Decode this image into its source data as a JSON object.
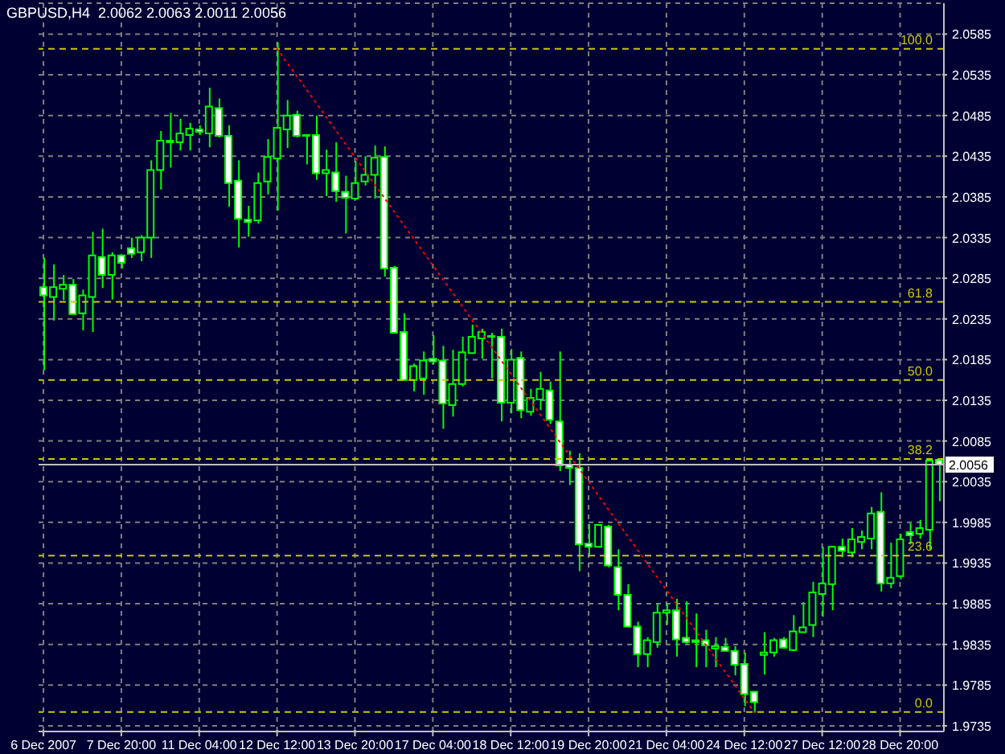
{
  "chart_data": {
    "type": "candlestick",
    "title": "GBPUSD,H4  2.0062 2.0063 2.0011 2.0056",
    "color": "#00ff00",
    "categories": [
      "6 Dec 2007",
      null,
      null,
      null,
      null,
      null,
      null,
      null,
      "7 Dec 20:00",
      null,
      null,
      null,
      null,
      null,
      null,
      null,
      "11 Dec 04:00",
      null,
      null,
      null,
      null,
      null,
      null,
      null,
      "12 Dec 12:00",
      null,
      null,
      null,
      null,
      null,
      null,
      null,
      "13 Dec 20:00",
      null,
      null,
      null,
      null,
      null,
      null,
      null,
      "17 Dec 04:00",
      null,
      null,
      null,
      null,
      null,
      null,
      null,
      "18 Dec 12:00",
      null,
      null,
      null,
      null,
      null,
      null,
      null,
      "19 Dec 20:00",
      null,
      null,
      null,
      null,
      null,
      null,
      null,
      "21 Dec 04:00",
      null,
      null,
      null,
      null,
      null,
      null,
      null,
      "24 Dec 12:00",
      null,
      null,
      null,
      null,
      null,
      null,
      null,
      "27 Dec 12:00",
      null,
      null,
      null,
      null,
      null,
      null,
      null,
      "28 Dec 20:00",
      null,
      null,
      null,
      null
    ],
    "ohlc": [
      [
        2.0274,
        2.031,
        2.0172,
        2.0264
      ],
      [
        2.0262,
        2.0302,
        2.0233,
        2.0274
      ],
      [
        2.0272,
        2.0289,
        2.0258,
        2.0277
      ],
      [
        2.0277,
        2.0284,
        2.0241,
        2.0241
      ],
      [
        2.0242,
        2.0271,
        2.0221,
        2.0264
      ],
      [
        2.0262,
        2.0342,
        2.0219,
        2.0313
      ],
      [
        2.0311,
        2.0346,
        2.0273,
        2.0289
      ],
      [
        2.0289,
        2.0317,
        2.0259,
        2.0313
      ],
      [
        2.0313,
        2.0314,
        2.0297,
        2.0304
      ],
      [
        2.0322,
        2.0335,
        2.031,
        2.0315
      ],
      [
        2.0317,
        2.0338,
        2.0306,
        2.0335
      ],
      [
        2.0335,
        2.043,
        2.031,
        2.0418
      ],
      [
        2.0418,
        2.0466,
        2.0394,
        2.0454
      ],
      [
        2.0454,
        2.0488,
        2.0421,
        2.0452
      ],
      [
        2.0452,
        2.0481,
        2.0442,
        2.0463
      ],
      [
        2.0461,
        2.0476,
        2.0442,
        2.0469
      ],
      [
        2.0468,
        2.0473,
        2.0461,
        2.0465
      ],
      [
        2.0463,
        2.0519,
        2.0446,
        2.0496
      ],
      [
        2.0494,
        2.0506,
        2.0458,
        2.046
      ],
      [
        2.046,
        2.0473,
        2.0373,
        2.0402
      ],
      [
        2.0405,
        2.043,
        2.0323,
        2.0358
      ],
      [
        2.0357,
        2.0374,
        2.0336,
        2.0354
      ],
      [
        2.0356,
        2.0415,
        2.0352,
        2.0402
      ],
      [
        2.0404,
        2.0456,
        2.0388,
        2.0434
      ],
      [
        2.0432,
        2.0575,
        2.0368,
        2.047
      ],
      [
        2.0468,
        2.0504,
        2.0445,
        2.0485
      ],
      [
        2.0486,
        2.0491,
        2.0458,
        2.046
      ],
      [
        2.0461,
        2.0461,
        2.0425,
        2.046
      ],
      [
        2.0461,
        2.0485,
        2.0406,
        2.0414
      ],
      [
        2.0414,
        2.0443,
        2.0386,
        2.0418
      ],
      [
        2.0415,
        2.0452,
        2.0379,
        2.0392
      ],
      [
        2.0391,
        2.0411,
        2.034,
        2.0384
      ],
      [
        2.0383,
        2.0429,
        2.0381,
        2.0402
      ],
      [
        2.0404,
        2.0435,
        2.0399,
        2.0412
      ],
      [
        2.0412,
        2.0448,
        2.0383,
        2.0433
      ],
      [
        2.0434,
        2.0447,
        2.0287,
        2.0297
      ],
      [
        2.0298,
        2.03,
        2.0217,
        2.0218
      ],
      [
        2.0219,
        2.0242,
        2.0159,
        2.016
      ],
      [
        2.016,
        2.018,
        2.0146,
        2.0177
      ],
      [
        2.0162,
        2.0195,
        2.0142,
        2.0184
      ],
      [
        2.0186,
        2.0215,
        2.0179,
        2.0183
      ],
      [
        2.0184,
        2.0202,
        2.01,
        2.0131
      ],
      [
        2.0129,
        2.0197,
        2.0115,
        2.0155
      ],
      [
        2.0155,
        2.0213,
        2.0152,
        2.0194
      ],
      [
        2.0193,
        2.0228,
        2.0192,
        2.0213
      ],
      [
        2.0211,
        2.0223,
        2.0186,
        2.0219
      ],
      [
        2.0213,
        2.0218,
        2.0162,
        2.0214
      ],
      [
        2.0213,
        2.0223,
        2.0109,
        2.0132
      ],
      [
        2.0132,
        2.0198,
        2.0119,
        2.0185
      ],
      [
        2.0187,
        2.0195,
        2.0113,
        2.0123
      ],
      [
        2.0121,
        2.0149,
        2.0116,
        2.0138
      ],
      [
        2.0136,
        2.017,
        2.0123,
        2.0149
      ],
      [
        2.0147,
        2.0158,
        2.0106,
        2.0111
      ],
      [
        2.0109,
        2.0195,
        2.0048,
        2.0055
      ],
      [
        2.0056,
        2.0073,
        2.0031,
        2.0052
      ],
      [
        2.0052,
        2.007,
        1.9925,
        1.9958
      ],
      [
        1.9959,
        1.9983,
        1.9945,
        1.9955
      ],
      [
        1.9955,
        1.9982,
        1.9954,
        1.9982
      ],
      [
        1.998,
        1.9982,
        1.993,
        1.9932
      ],
      [
        1.993,
        1.9952,
        1.9877,
        1.9896
      ],
      [
        1.9896,
        1.9909,
        1.9856,
        1.9857
      ],
      [
        1.9857,
        1.9863,
        1.9807,
        1.9823
      ],
      [
        1.9823,
        1.9844,
        1.9807,
        1.984
      ],
      [
        1.9838,
        1.9886,
        1.9831,
        1.9874
      ],
      [
        1.9874,
        1.9886,
        1.9859,
        1.9877
      ],
      [
        1.9877,
        1.9891,
        1.982,
        1.9841
      ],
      [
        1.9843,
        1.9888,
        1.9836,
        1.9838
      ],
      [
        1.984,
        1.9873,
        1.9807,
        1.9838
      ],
      [
        1.984,
        1.9853,
        1.9807,
        1.9834
      ],
      [
        1.983,
        1.9844,
        1.9807,
        1.9833
      ],
      [
        1.9832,
        1.9843,
        1.9827,
        1.9827
      ],
      [
        1.9827,
        1.9833,
        1.9797,
        1.981
      ],
      [
        1.9811,
        1.9825,
        1.9759,
        1.9774
      ],
      [
        1.9777,
        1.9777,
        1.9751,
        1.9764
      ],
      [
        1.9822,
        1.985,
        1.9798,
        1.9825
      ],
      [
        1.9825,
        1.9843,
        1.982,
        1.984
      ],
      [
        1.9841,
        1.9844,
        1.983,
        1.9831
      ],
      [
        1.9828,
        1.9871,
        1.9827,
        1.9851
      ],
      [
        1.985,
        1.9887,
        1.985,
        1.9856
      ],
      [
        1.9859,
        1.9912,
        1.9844,
        1.9899
      ],
      [
        1.9897,
        1.9955,
        1.9869,
        1.991
      ],
      [
        1.9909,
        1.9956,
        1.9877,
        1.9955
      ],
      [
        1.9955,
        1.9965,
        1.9942,
        1.995
      ],
      [
        1.9948,
        1.9978,
        1.9942,
        1.9964
      ],
      [
        1.9961,
        1.9975,
        1.9952,
        1.9967
      ],
      [
        1.9965,
        2.0004,
        1.9952,
        1.9996
      ],
      [
        1.9998,
        2.0022,
        1.99,
        1.991
      ],
      [
        1.991,
        1.996,
        1.9904,
        1.9917
      ],
      [
        1.9919,
        1.9971,
        1.9915,
        1.9964
      ],
      [
        1.9973,
        1.9984,
        1.9958,
        1.9969
      ],
      [
        1.9971,
        1.9988,
        1.9965,
        1.9978
      ],
      [
        1.9976,
        2.0063,
        1.9952,
        2.0061
      ],
      [
        2.0062,
        2.0063,
        2.0011,
        2.0056
      ]
    ],
    "series": [
      {
        "type": "line",
        "color": "#ff0000",
        "line_style": "dotted",
        "values": [
          null,
          null,
          null,
          null,
          null,
          null,
          null,
          null,
          null,
          null,
          null,
          null,
          null,
          null,
          null,
          null,
          null,
          null,
          null,
          null,
          null,
          null,
          null,
          null,
          2.0567,
          null,
          null,
          null,
          null,
          null,
          null,
          null,
          null,
          null,
          null,
          null,
          null,
          null,
          null,
          null,
          null,
          null,
          null,
          null,
          null,
          null,
          null,
          null,
          null,
          null,
          null,
          null,
          null,
          null,
          null,
          null,
          null,
          null,
          null,
          null,
          null,
          null,
          null,
          null,
          null,
          null,
          null,
          null,
          null,
          null,
          null,
          null,
          null,
          1.9752,
          null,
          null,
          null,
          null,
          null,
          null,
          null,
          null,
          null,
          null,
          null,
          null,
          null,
          null,
          null,
          null,
          null,
          null,
          null
        ]
      }
    ],
    "ylim": [
      1.9728,
      2.0623
    ],
    "yticks": [
      1.9735,
      1.9785,
      1.9835,
      1.9885,
      1.9935,
      1.9985,
      2.0035,
      2.0085,
      2.0135,
      2.0185,
      2.0235,
      2.0285,
      2.0335,
      2.0385,
      2.0435,
      2.0485,
      2.0535,
      2.0585
    ],
    "grid": true,
    "annotations": [
      {
        "text": "100.0",
        "y": 2.0567
      },
      {
        "text": "61.8",
        "y": 2.0256
      },
      {
        "text": "50.0",
        "y": 2.016
      },
      {
        "text": "38.2",
        "y": 2.0063
      },
      {
        "text": "23.6",
        "y": 1.9944
      },
      {
        "text": "0.0",
        "y": 1.9752
      }
    ],
    "ref_lines": [
      {
        "axis": "y",
        "value": 2.0567,
        "color": "#c8c800",
        "line_style": "dashed"
      },
      {
        "axis": "y",
        "value": 2.0256,
        "color": "#c8c800",
        "line_style": "dashed"
      },
      {
        "axis": "y",
        "value": 2.016,
        "color": "#c8c800",
        "line_style": "dashed"
      },
      {
        "axis": "y",
        "value": 2.0063,
        "color": "#c8c800",
        "line_style": "dashed"
      },
      {
        "axis": "y",
        "value": 1.9944,
        "color": "#c8c800",
        "line_style": "dashed"
      },
      {
        "axis": "y",
        "value": 1.9752,
        "color": "#c8c800",
        "line_style": "dashed"
      },
      {
        "axis": "y",
        "value": 2.0056,
        "label": "2.0056",
        "color": "#c0c0c0",
        "line_style": "solid"
      }
    ]
  }
}
